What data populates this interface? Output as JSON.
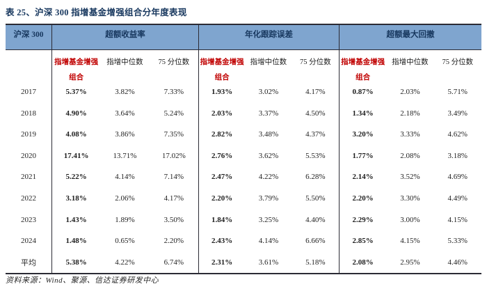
{
  "title": "表 25、沪深 300 指增基金增强组合分年度表现",
  "colors": {
    "header_band_bg": "#7FA5CF",
    "header_text_navy": "#17375E",
    "accent_red": "#C00000",
    "border_dark": "#2B2B34"
  },
  "table": {
    "row_header": "沪深 300",
    "sections": [
      {
        "label": "超额收益率"
      },
      {
        "label": "年化跟踪误差"
      },
      {
        "label": "超额最大回撤"
      }
    ],
    "sub_columns": [
      "指增基金增强组合",
      "指增中位数",
      "75 分位数"
    ],
    "rows": [
      {
        "year": "2017",
        "values": [
          "5.37%",
          "3.82%",
          "7.33%",
          "1.93%",
          "3.02%",
          "4.17%",
          "0.87%",
          "2.03%",
          "5.71%"
        ]
      },
      {
        "year": "2018",
        "values": [
          "4.90%",
          "3.64%",
          "5.24%",
          "2.03%",
          "3.37%",
          "4.50%",
          "1.34%",
          "2.18%",
          "3.49%"
        ]
      },
      {
        "year": "2019",
        "values": [
          "4.08%",
          "3.86%",
          "7.35%",
          "2.82%",
          "3.48%",
          "4.37%",
          "3.20%",
          "3.33%",
          "4.62%"
        ]
      },
      {
        "year": "2020",
        "values": [
          "17.41%",
          "13.71%",
          "17.02%",
          "2.76%",
          "3.62%",
          "5.53%",
          "1.77%",
          "2.08%",
          "3.18%"
        ]
      },
      {
        "year": "2021",
        "values": [
          "5.22%",
          "4.14%",
          "7.14%",
          "2.47%",
          "4.22%",
          "6.28%",
          "2.14%",
          "3.52%",
          "4.69%"
        ]
      },
      {
        "year": "2022",
        "values": [
          "3.18%",
          "2.06%",
          "4.17%",
          "2.20%",
          "3.79%",
          "5.50%",
          "2.20%",
          "3.30%",
          "4.49%"
        ]
      },
      {
        "year": "2023",
        "values": [
          "1.43%",
          "1.89%",
          "3.50%",
          "1.84%",
          "3.25%",
          "4.40%",
          "2.29%",
          "3.00%",
          "4.15%"
        ]
      },
      {
        "year": "2024",
        "values": [
          "1.48%",
          "0.65%",
          "2.20%",
          "2.43%",
          "4.14%",
          "6.66%",
          "2.85%",
          "4.15%",
          "5.33%"
        ]
      },
      {
        "year": "平均",
        "values": [
          "5.38%",
          "4.22%",
          "6.74%",
          "2.31%",
          "3.61%",
          "5.18%",
          "2.08%",
          "2.95%",
          "4.46%"
        ]
      }
    ]
  },
  "footer": {
    "source": "资料来源：Wind、聚源、信达证券研发中心"
  }
}
